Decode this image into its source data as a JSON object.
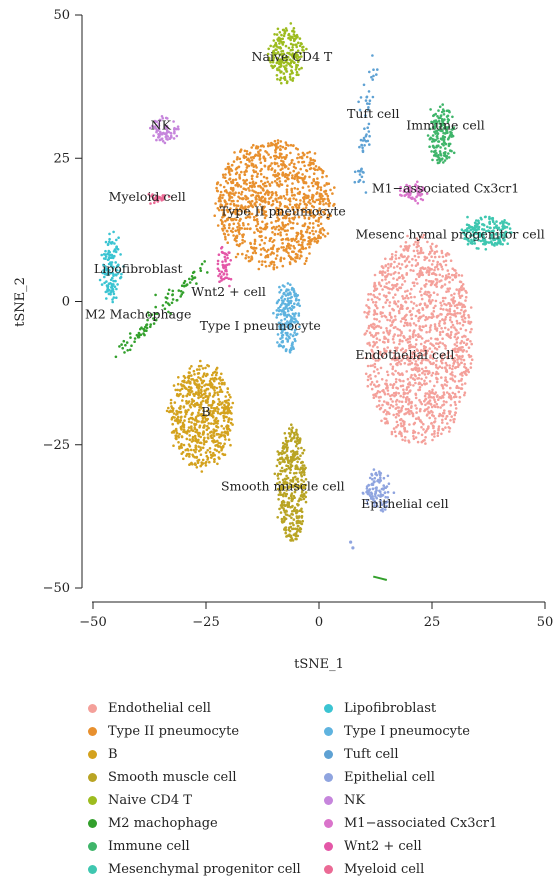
{
  "chart_data": {
    "type": "scatter",
    "xlabel": "tSNE_1",
    "ylabel": "tSNE_2",
    "xlim": [
      -50,
      50
    ],
    "ylim": [
      -50,
      50
    ],
    "xticks": [
      -50,
      -25,
      0,
      25,
      50
    ],
    "yticks": [
      -50,
      -25,
      0,
      25,
      50
    ],
    "grid": false,
    "legend_placement": "bottom",
    "clusters": [
      {
        "name": "Endothelial cell",
        "color": "#F4A09A",
        "label": "Endothelial cell",
        "label_x": 19,
        "label_y": -10,
        "shape": "blob",
        "center": [
          22,
          -7
        ],
        "spread": [
          12,
          18
        ],
        "n": 1400
      },
      {
        "name": "Type II pneumocyte",
        "color": "#E8902E",
        "label": "Type II pneumocyte",
        "label_x": -8,
        "label_y": 15,
        "shape": "blob",
        "center": [
          -10,
          17
        ],
        "spread": [
          13,
          11
        ],
        "n": 1100
      },
      {
        "name": "B",
        "color": "#D4A21E",
        "label": "B",
        "label_x": -25,
        "label_y": -20,
        "shape": "blob",
        "center": [
          -26,
          -20
        ],
        "spread": [
          7,
          9
        ],
        "n": 650
      },
      {
        "name": "Smooth muscle cell",
        "color": "#B9A424",
        "label": "Smooth muscle cell",
        "label_x": -8,
        "label_y": -33,
        "shape": "blob",
        "center": [
          -6,
          -32
        ],
        "spread": [
          3,
          10
        ],
        "n": 400
      },
      {
        "name": "Naive CD4 T",
        "color": "#9DBC1F",
        "label": "Naive CD4 T",
        "label_x": -6,
        "label_y": 42,
        "shape": "blob",
        "center": [
          -7,
          43
        ],
        "spread": [
          4,
          5
        ],
        "n": 220
      },
      {
        "name": "M2 machophage",
        "color": "#33A02C",
        "label": "M2 Machophage",
        "label_x": -40,
        "label_y": -3,
        "shape": "line",
        "from": [
          -44,
          -9
        ],
        "to": [
          -26,
          6
        ],
        "n": 90
      },
      {
        "name": "Immune cell",
        "color": "#3FB56A",
        "label": "Immune cell",
        "label_x": 28,
        "label_y": 30,
        "shape": "blob",
        "center": [
          27,
          29
        ],
        "spread": [
          2.5,
          5
        ],
        "n": 170
      },
      {
        "name": "Mesenchymal progenitor cell",
        "color": "#3FC7B0",
        "label": "Mesenc  hymal progenitor cell",
        "label_x": 29,
        "label_y": 11,
        "shape": "blob",
        "center": [
          37,
          12
        ],
        "spread": [
          5.5,
          2.5
        ],
        "n": 200
      },
      {
        "name": "Lipofibroblast",
        "color": "#3BC4D2",
        "label": "Lipofibroblast",
        "label_x": -40,
        "label_y": 5,
        "shape": "blob",
        "center": [
          -46,
          6
        ],
        "spread": [
          2,
          6
        ],
        "n": 130
      },
      {
        "name": "Type I pneumocyte",
        "color": "#5FB3DF",
        "label": "Type I pneumocyte",
        "label_x": -13,
        "label_y": -5,
        "shape": "blob",
        "center": [
          -7,
          -3
        ],
        "spread": [
          2.5,
          6
        ],
        "n": 200
      },
      {
        "name": "Tuft cell",
        "color": "#5EA1D3",
        "label": "Tuft cell",
        "label_x": 12,
        "label_y": 32,
        "shape": "line",
        "from": [
          9,
          20
        ],
        "to": [
          12,
          43
        ],
        "n": 60
      },
      {
        "name": "Epithelial cell",
        "color": "#8FA4DF",
        "label": "Epithelial cell",
        "label_x": 19,
        "label_y": -36,
        "shape": "blob",
        "center": [
          13,
          -33
        ],
        "spread": [
          3,
          3.5
        ],
        "n": 110
      },
      {
        "name": "NK",
        "color": "#C685DC",
        "label": "NK",
        "label_x": -35,
        "label_y": 30,
        "shape": "blob",
        "center": [
          -34,
          30
        ],
        "spread": [
          3,
          2
        ],
        "n": 70
      },
      {
        "name": "M1-associated Cx3cr1",
        "color": "#DA74CB",
        "label": "M1−associated Cx3cr1",
        "label_x": 28,
        "label_y": 19,
        "shape": "blob",
        "center": [
          21,
          19
        ],
        "spread": [
          2.5,
          1.5
        ],
        "n": 60
      },
      {
        "name": "Wnt2 + cell",
        "color": "#E457A7",
        "label": "Wnt2 + cell",
        "label_x": -20,
        "label_y": 1,
        "shape": "blob",
        "center": [
          -21,
          6
        ],
        "spread": [
          1.5,
          3
        ],
        "n": 50
      },
      {
        "name": "Myeloid cell",
        "color": "#EB6A95",
        "label": "Myeloid cell",
        "label_x": -38,
        "label_y": 17.5,
        "shape": "blob",
        "center": [
          -36,
          18
        ],
        "spread": [
          2,
          0.6
        ],
        "n": 30
      }
    ]
  },
  "legend": {
    "left": [
      {
        "label": "Endothelial cell",
        "color": "#F4A09A"
      },
      {
        "label": "Type II pneumocyte",
        "color": "#E8902E"
      },
      {
        "label": "B",
        "color": "#D4A21E"
      },
      {
        "label": "Smooth muscle cell",
        "color": "#B9A424"
      },
      {
        "label": "Naive CD4 T",
        "color": "#9DBC1F"
      },
      {
        "label": "M2 machophage",
        "color": "#33A02C"
      },
      {
        "label": "Immune cell",
        "color": "#3FB56A"
      },
      {
        "label": "Mesenchymal progenitor cell",
        "color": "#3FC7B0"
      }
    ],
    "right": [
      {
        "label": "Lipofibroblast",
        "color": "#3BC4D2"
      },
      {
        "label": "Type I pneumocyte",
        "color": "#5FB3DF"
      },
      {
        "label": "Tuft cell",
        "color": "#5EA1D3"
      },
      {
        "label": "Epithelial cell",
        "color": "#8FA4DF"
      },
      {
        "label": "NK",
        "color": "#C685DC"
      },
      {
        "label": "M1−associated Cx3cr1",
        "color": "#DA74CB"
      },
      {
        "label": "Wnt2 + cell",
        "color": "#E457A7"
      },
      {
        "label": "Myeloid cell",
        "color": "#EB6A95"
      }
    ]
  }
}
